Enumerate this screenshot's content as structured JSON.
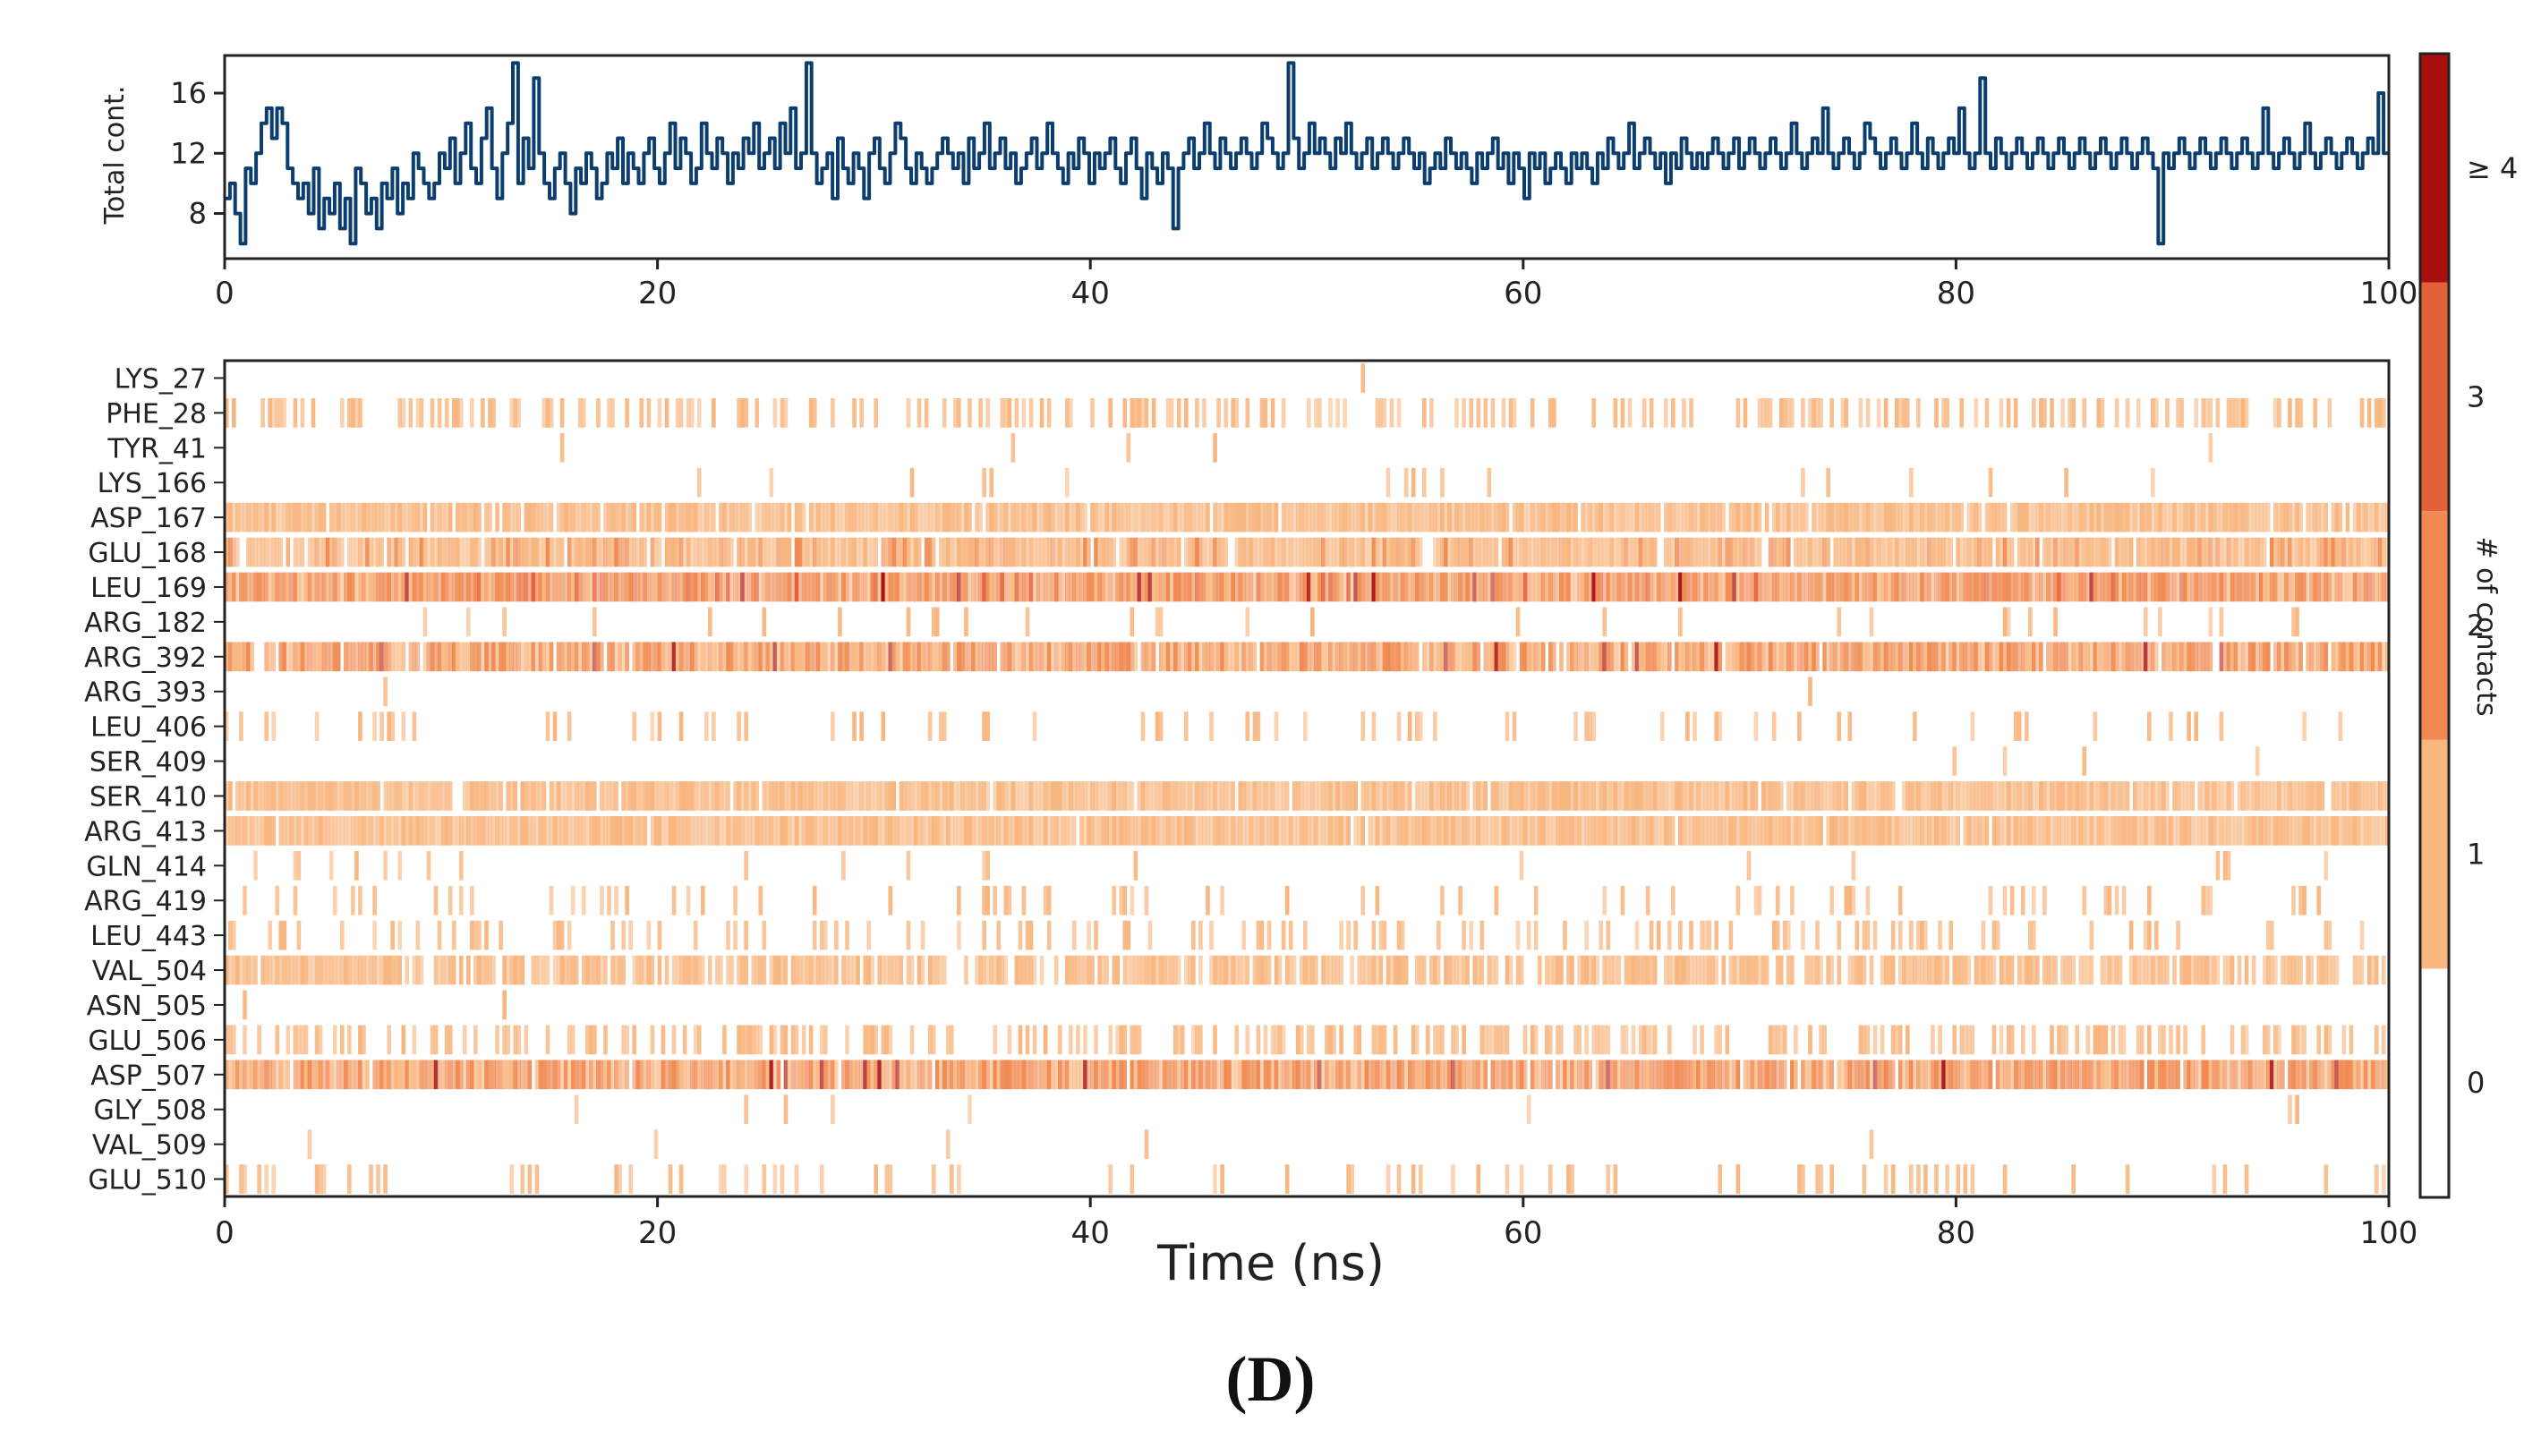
{
  "chart_data": [
    {
      "type": "line",
      "ylabel": "Total cont.",
      "xlim": [
        0,
        100
      ],
      "ylim": [
        5,
        18.5
      ],
      "x_ticks": [
        "0",
        "20",
        "40",
        "60",
        "80",
        "100"
      ],
      "y_ticks": [
        "8",
        "12",
        "16"
      ],
      "line_color": "#0b3d6e",
      "series": [
        {
          "name": "Total contacts",
          "values": [
            9,
            10,
            8,
            6,
            11,
            10,
            12,
            14,
            15,
            13,
            15,
            14,
            11,
            10,
            9,
            10,
            8,
            11,
            7,
            9,
            8,
            10,
            7,
            9,
            6,
            11,
            10,
            8,
            9,
            7,
            10,
            9,
            11,
            8,
            10,
            9,
            12,
            11,
            10,
            9,
            10,
            12,
            11,
            13,
            10,
            12,
            14,
            11,
            10,
            13,
            15,
            11,
            9,
            12,
            14,
            18,
            10,
            13,
            11,
            17,
            12,
            10,
            9,
            11,
            12,
            10,
            8,
            11,
            10,
            12,
            11,
            9,
            10,
            12,
            11,
            13,
            10,
            12,
            11,
            10,
            12,
            13,
            11,
            10,
            12,
            14,
            11,
            13,
            12,
            10,
            11,
            14,
            12,
            11,
            13,
            12,
            10,
            12,
            11,
            13,
            12,
            14,
            11,
            12,
            13,
            11,
            14,
            12,
            15,
            11,
            12,
            18,
            12,
            10,
            11,
            12,
            9,
            13,
            11,
            10,
            12,
            11,
            9,
            12,
            13,
            11,
            10,
            12,
            14,
            13,
            11,
            10,
            12,
            11,
            10,
            11,
            12,
            13,
            12,
            11,
            12,
            10,
            13,
            11,
            12,
            14,
            11,
            12,
            13,
            11,
            12,
            10,
            11,
            12,
            13,
            11,
            12,
            14,
            12,
            11,
            10,
            12,
            11,
            13,
            12,
            10,
            12,
            11,
            12,
            13,
            11,
            10,
            12,
            13,
            11,
            9,
            12,
            11,
            10,
            12,
            11,
            7,
            11,
            12,
            13,
            11,
            12,
            14,
            12,
            11,
            13,
            12,
            11,
            12,
            13,
            12,
            11,
            12,
            14,
            13,
            12,
            11,
            12,
            18,
            13,
            11,
            12,
            14,
            12,
            13,
            12,
            11,
            13,
            12,
            14,
            12,
            11,
            12,
            13,
            11,
            12,
            13,
            12,
            11,
            12,
            13,
            12,
            11,
            12,
            10,
            11,
            12,
            11,
            13,
            12,
            11,
            12,
            11,
            10,
            12,
            11,
            12,
            13,
            11,
            12,
            10,
            12,
            11,
            9,
            12,
            11,
            12,
            10,
            11,
            12,
            11,
            10,
            12,
            11,
            12,
            11,
            10,
            12,
            11,
            13,
            12,
            11,
            12,
            14,
            11,
            12,
            13,
            12,
            11,
            12,
            10,
            12,
            11,
            13,
            12,
            11,
            12,
            11,
            12,
            13,
            12,
            11,
            12,
            13,
            11,
            12,
            13,
            12,
            11,
            12,
            13,
            12,
            11,
            12,
            14,
            12,
            11,
            12,
            13,
            12,
            15,
            12,
            11,
            12,
            13,
            12,
            11,
            12,
            14,
            13,
            12,
            11,
            12,
            13,
            12,
            11,
            12,
            14,
            12,
            11,
            13,
            12,
            11,
            12,
            13,
            12,
            15,
            12,
            11,
            12,
            17,
            12,
            11,
            13,
            12,
            11,
            12,
            13,
            12,
            11,
            12,
            13,
            12,
            11,
            12,
            13,
            12,
            11,
            12,
            13,
            12,
            11,
            12,
            13,
            12,
            11,
            12,
            13,
            12,
            11,
            12,
            13,
            12,
            11,
            6,
            12,
            11,
            12,
            13,
            12,
            11,
            12,
            13,
            12,
            11,
            12,
            13,
            12,
            11,
            12,
            13,
            12,
            11,
            12,
            15,
            12,
            11,
            12,
            13,
            12,
            11,
            12,
            14,
            12,
            11,
            12,
            13,
            12,
            11,
            12,
            13,
            12,
            11,
            12,
            13,
            12,
            16,
            12
          ]
        }
      ]
    },
    {
      "type": "heatmap",
      "title": "",
      "xlabel": "Time (ns)",
      "xlim": [
        0,
        100
      ],
      "x_ticks": [
        "0",
        "20",
        "40",
        "60",
        "80",
        "100"
      ],
      "residues": [
        {
          "name": "LYS_27",
          "density": 0.005,
          "level": 1
        },
        {
          "name": "PHE_28",
          "density": 0.35,
          "level": 1
        },
        {
          "name": "TYR_41",
          "density": 0.004,
          "level": 1
        },
        {
          "name": "LYS_166",
          "density": 0.03,
          "level": 1
        },
        {
          "name": "ASP_167",
          "density": 0.95,
          "level": 1.3
        },
        {
          "name": "GLU_168",
          "density": 0.92,
          "level": 1.5
        },
        {
          "name": "LEU_169",
          "density": 1.0,
          "level": 2.4
        },
        {
          "name": "ARG_182",
          "density": 0.04,
          "level": 1
        },
        {
          "name": "ARG_392",
          "density": 0.93,
          "level": 2.1
        },
        {
          "name": "ARG_393",
          "density": 0.006,
          "level": 1
        },
        {
          "name": "LEU_406",
          "density": 0.12,
          "level": 1
        },
        {
          "name": "SER_409",
          "density": 0.01,
          "level": 1
        },
        {
          "name": "SER_410",
          "density": 0.95,
          "level": 1.3
        },
        {
          "name": "ARG_413",
          "density": 0.99,
          "level": 1.1
        },
        {
          "name": "GLN_414",
          "density": 0.03,
          "level": 1
        },
        {
          "name": "ARG_419",
          "density": 0.14,
          "level": 1
        },
        {
          "name": "LEU_443",
          "density": 0.2,
          "level": 1
        },
        {
          "name": "VAL_504",
          "density": 0.8,
          "level": 1
        },
        {
          "name": "ASN_505",
          "density": 0.004,
          "level": 1
        },
        {
          "name": "GLU_506",
          "density": 0.4,
          "level": 1
        },
        {
          "name": "ASP_507",
          "density": 0.97,
          "level": 2.3
        },
        {
          "name": "GLY_508",
          "density": 0.01,
          "level": 1
        },
        {
          "name": "VAL_509",
          "density": 0.01,
          "level": 1
        },
        {
          "name": "GLU_510",
          "density": 0.12,
          "level": 1
        }
      ]
    },
    {
      "type": "colorbar",
      "label": "# of contacts",
      "levels": [
        {
          "label": "0",
          "color": "#ffffff"
        },
        {
          "label": "1",
          "color": "#f8b57e"
        },
        {
          "label": "2",
          "color": "#f08a52"
        },
        {
          "label": "3",
          "color": "#e2603a"
        },
        {
          "label": "≥ 4",
          "color": "#a81010"
        }
      ]
    }
  ],
  "caption": "(D)"
}
